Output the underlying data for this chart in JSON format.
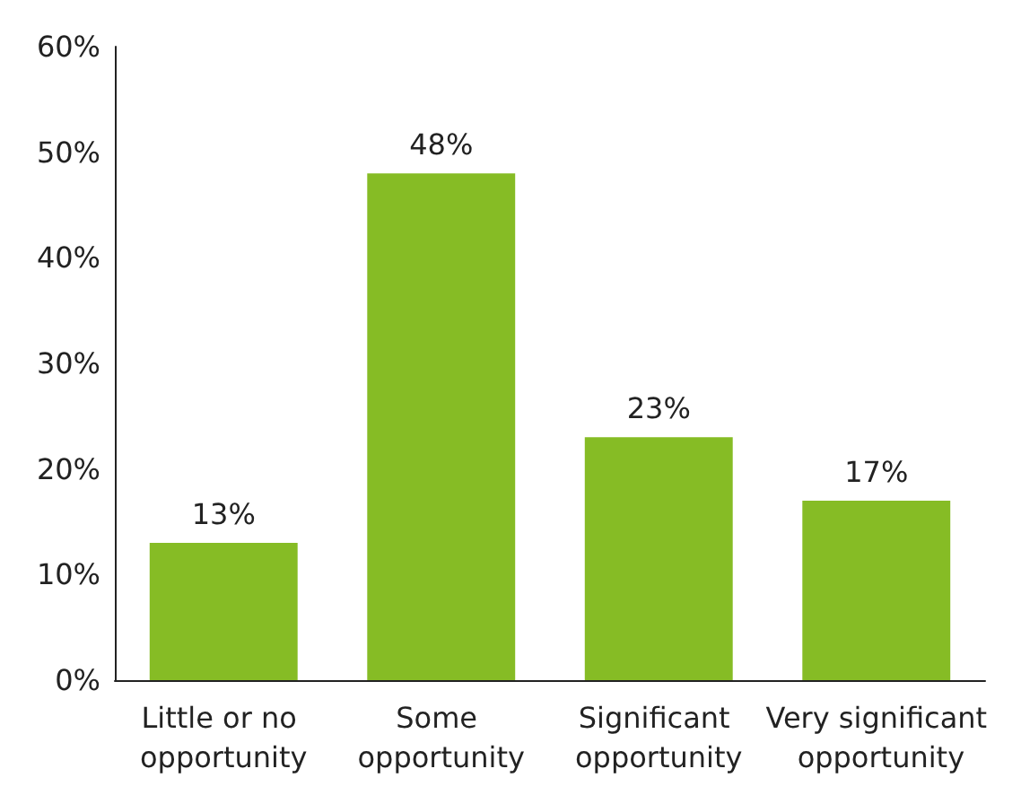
{
  "chart_data": {
    "type": "bar",
    "categories": [
      "Little or no opportunity",
      "Some opportunity",
      "Significant opportunity",
      "Very significant opportunity"
    ],
    "values": [
      13,
      48,
      23,
      17
    ],
    "value_labels": [
      "13%",
      "48%",
      "23%",
      "17%"
    ],
    "color": "#86bc25",
    "ylim": [
      0,
      60
    ],
    "yticks": [
      {
        "value": 0,
        "label": "0%"
      },
      {
        "value": 10,
        "label": "10%"
      },
      {
        "value": 20,
        "label": "20%"
      },
      {
        "value": 30,
        "label": "30%"
      },
      {
        "value": 40,
        "label": "40%"
      },
      {
        "value": 50,
        "label": "50%"
      },
      {
        "value": 60,
        "label": "60%"
      }
    ],
    "grid": false
  }
}
